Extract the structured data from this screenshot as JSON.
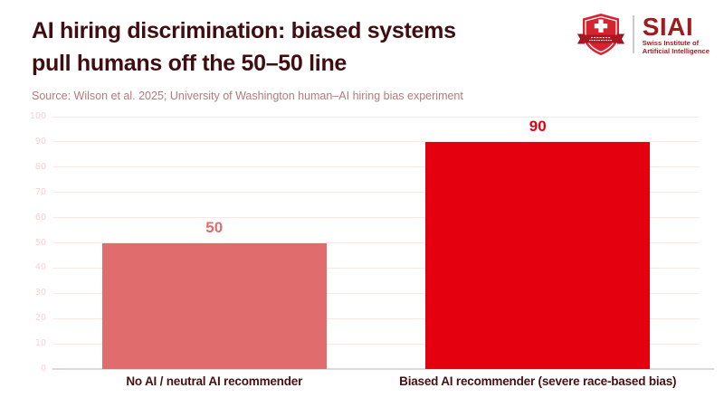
{
  "header": {
    "title_line1": "AI hiring discrimination: biased systems",
    "title_line2": "pull humans off the 50–50 line",
    "source": "Source: Wilson et al. 2025; University of Washington human–AI hiring bias experiment"
  },
  "logo": {
    "name": "SIAI",
    "subtitle_line1": "Swiss Institute of",
    "subtitle_line2": "Artificial Intelligence"
  },
  "chart_data": {
    "type": "bar",
    "title": "AI hiring discrimination: biased systems pull humans off the 50–50 line",
    "categories": [
      "No AI / neutral AI recommender",
      "Biased AI recommender (severe race-based bias)"
    ],
    "values": [
      50,
      90
    ],
    "value_labels": [
      "50",
      "90"
    ],
    "bar_colors": [
      "#e06c6d",
      "#e4000f"
    ],
    "label_colors": [
      "#e06c6d",
      "#e4000f"
    ],
    "xlabel": "",
    "ylabel": "",
    "ylim": [
      0,
      100
    ],
    "yticks": [
      0,
      10,
      20,
      30,
      40,
      50,
      60,
      70,
      80,
      90,
      100
    ],
    "grid": true,
    "legend": "none"
  },
  "colors": {
    "title": "#400d10",
    "source_text": "#b5797c",
    "tick_label": "#f7d2cf",
    "gridline": "#fbe7e5",
    "baseline": "#d9d9d9",
    "category_label": "#451114",
    "logo_red": "#9e1b1f",
    "shield_red": "#d5232f",
    "ribbon_dark_red": "#9c1420"
  }
}
